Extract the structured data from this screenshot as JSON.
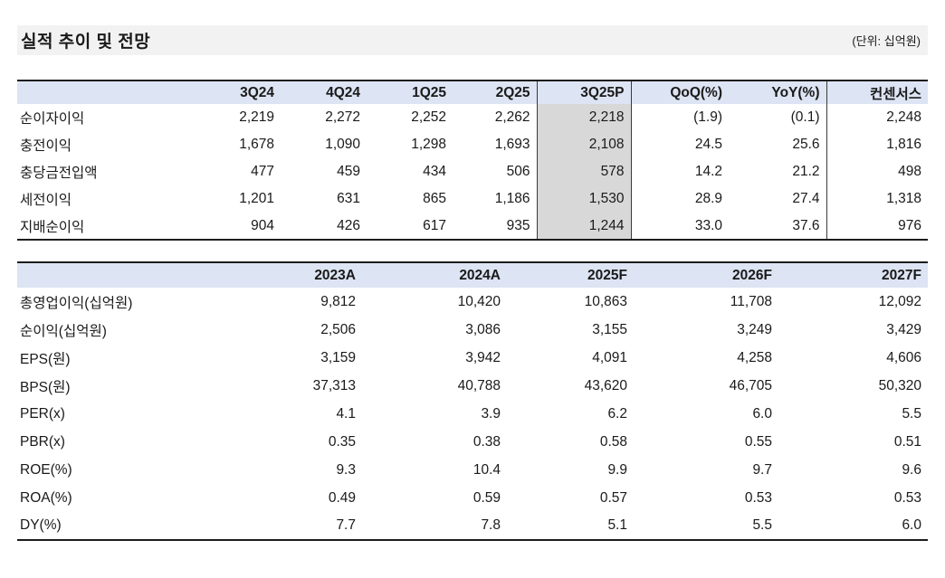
{
  "title_bar": {
    "title": "실적 추이 및 전망",
    "unit": "(단위: 십억원)"
  },
  "colors": {
    "title_bar_bg": "#f2f2f2",
    "header_row_bg": "#dde4f3",
    "highlight_column_bg": "#d8d8d8",
    "rule_color": "#1c1c1c",
    "text_color": "#1a1a1a"
  },
  "quarterly_table": {
    "columns": [
      "",
      "3Q24",
      "4Q24",
      "1Q25",
      "2Q25",
      "3Q25P",
      "QoQ(%)",
      "YoY(%)",
      "컨센서스"
    ],
    "highlight_column": "3Q25P",
    "rows": [
      {
        "label": "순이자이익",
        "values": [
          "2,219",
          "2,272",
          "2,252",
          "2,262",
          "2,218",
          "(1.9)",
          "(0.1)",
          "2,248"
        ]
      },
      {
        "label": "충전이익",
        "values": [
          "1,678",
          "1,090",
          "1,298",
          "1,693",
          "2,108",
          "24.5",
          "25.6",
          "1,816"
        ]
      },
      {
        "label": "충당금전입액",
        "values": [
          "477",
          "459",
          "434",
          "506",
          "578",
          "14.2",
          "21.2",
          "498"
        ]
      },
      {
        "label": "세전이익",
        "values": [
          "1,201",
          "631",
          "865",
          "1,186",
          "1,530",
          "28.9",
          "27.4",
          "1,318"
        ]
      },
      {
        "label": "지배순이익",
        "values": [
          "904",
          "426",
          "617",
          "935",
          "1,244",
          "33.0",
          "37.6",
          "976"
        ]
      }
    ]
  },
  "annual_table": {
    "columns": [
      "",
      "2023A",
      "2024A",
      "2025F",
      "2026F",
      "2027F"
    ],
    "rows": [
      {
        "label": "총영업이익(십억원)",
        "values": [
          "9,812",
          "10,420",
          "10,863",
          "11,708",
          "12,092"
        ]
      },
      {
        "label": "순이익(십억원)",
        "values": [
          "2,506",
          "3,086",
          "3,155",
          "3,249",
          "3,429"
        ]
      },
      {
        "label": "EPS(원)",
        "values": [
          "3,159",
          "3,942",
          "4,091",
          "4,258",
          "4,606"
        ]
      },
      {
        "label": "BPS(원)",
        "values": [
          "37,313",
          "40,788",
          "43,620",
          "46,705",
          "50,320"
        ]
      },
      {
        "label": "PER(x)",
        "values": [
          "4.1",
          "3.9",
          "6.2",
          "6.0",
          "5.5"
        ]
      },
      {
        "label": "PBR(x)",
        "values": [
          "0.35",
          "0.38",
          "0.58",
          "0.55",
          "0.51"
        ]
      },
      {
        "label": "ROE(%)",
        "values": [
          "9.3",
          "10.4",
          "9.9",
          "9.7",
          "9.6"
        ]
      },
      {
        "label": "ROA(%)",
        "values": [
          "0.49",
          "0.59",
          "0.57",
          "0.53",
          "0.53"
        ]
      },
      {
        "label": "DY(%)",
        "values": [
          "7.7",
          "7.8",
          "5.1",
          "5.5",
          "6.0"
        ]
      }
    ]
  }
}
